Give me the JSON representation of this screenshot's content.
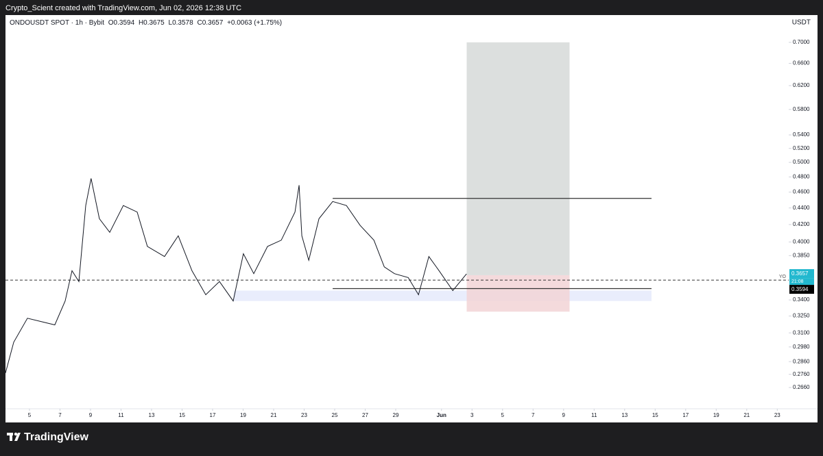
{
  "header": {
    "credit": "Crypto_Scient created with TradingView.com, Jun 02, 2026 12:38 UTC",
    "symbol": "ONDOUSDT SPOT · 1h · Bybit",
    "ohlc": [
      "O0.3594",
      "H0.3675",
      "L0.3578",
      "C0.3657",
      "+0.0063 (+1.75%)"
    ],
    "currency": "USDT"
  },
  "footer": {
    "brand": "TradingView"
  },
  "chart_data": {
    "type": "line",
    "log_scale": true,
    "series": [
      {
        "name": "ONDOUSDT",
        "color": "#131722",
        "x": [
          3.43,
          3.97,
          4.87,
          5.76,
          6.66,
          7.34,
          7.79,
          8.24,
          8.69,
          9.04,
          9.58,
          10.26,
          11.15,
          12.06,
          12.73,
          13.85,
          14.75,
          15.65,
          16.55,
          17.45,
          18.35,
          19.02,
          19.7,
          20.6,
          21.5,
          22.4,
          22.67,
          22.85,
          23.3,
          23.97,
          24.87,
          25.77,
          26.67,
          27.57,
          28.25,
          28.92,
          29.82,
          30.49,
          31.17,
          31.84,
          32.74,
          33.64
        ],
        "values": [
          0.277,
          0.302,
          0.323,
          0.32,
          0.317,
          0.339,
          0.369,
          0.358,
          0.443,
          0.478,
          0.427,
          0.411,
          0.443,
          0.435,
          0.395,
          0.384,
          0.407,
          0.369,
          0.345,
          0.358,
          0.339,
          0.387,
          0.366,
          0.395,
          0.402,
          0.435,
          0.469,
          0.407,
          0.38,
          0.427,
          0.448,
          0.443,
          0.419,
          0.402,
          0.373,
          0.366,
          0.362,
          0.345,
          0.384,
          0.369,
          0.349,
          0.3657
        ]
      }
    ],
    "xlim": [
      3.43,
      54.75
    ],
    "xticks": [
      5,
      7,
      9,
      11,
      13,
      15,
      17,
      19,
      21,
      23,
      25,
      27,
      29,
      {
        "value": 32,
        "label": "Jun"
      },
      {
        "value": 34,
        "label": "3"
      },
      {
        "value": 36,
        "label": "5"
      },
      {
        "value": 38,
        "label": "7"
      },
      {
        "value": 40,
        "label": "9"
      },
      {
        "value": 42,
        "label": "11"
      },
      {
        "value": 44,
        "label": "13"
      },
      {
        "value": 46,
        "label": "15"
      },
      {
        "value": 48,
        "label": "17"
      },
      {
        "value": 50,
        "label": "19"
      },
      {
        "value": 52,
        "label": "21"
      },
      {
        "value": 54,
        "label": "23"
      }
    ],
    "ylim": [
      0.2506,
      0.723
    ],
    "yticks": [
      {
        "value": 0.266,
        "label": "0.2660"
      },
      {
        "value": 0.276,
        "label": "0.2760"
      },
      {
        "value": 0.286,
        "label": "0.2860"
      },
      {
        "value": 0.298,
        "label": "0.2980"
      },
      {
        "value": 0.31,
        "label": "0.3100"
      },
      {
        "value": 0.325,
        "label": "0.3250"
      },
      {
        "value": 0.34,
        "label": "0.3400"
      },
      {
        "value": 0.385,
        "label": "0.3850"
      },
      {
        "value": 0.4,
        "label": "0.4000"
      },
      {
        "value": 0.42,
        "label": "0.4200"
      },
      {
        "value": 0.44,
        "label": "0.4400"
      },
      {
        "value": 0.46,
        "label": "0.4600"
      },
      {
        "value": 0.48,
        "label": "0.4800"
      },
      {
        "value": 0.5,
        "label": "0.5000"
      },
      {
        "value": 0.52,
        "label": "0.5200"
      },
      {
        "value": 0.54,
        "label": "0.5400"
      },
      {
        "value": 0.58,
        "label": "0.5800"
      },
      {
        "value": 0.62,
        "label": "0.6200"
      },
      {
        "value": 0.66,
        "label": "0.6600"
      },
      {
        "value": 0.7,
        "label": "0.7000"
      }
    ],
    "hlines": [
      {
        "value": 0.452,
        "x": [
          24.87,
          45.76
        ],
        "color": "#333333"
      },
      {
        "value": 0.351,
        "x": [
          24.87,
          45.76
        ],
        "color": "#333333"
      }
    ],
    "zone": {
      "low": 0.339,
      "high": 0.349,
      "x": [
        18.37,
        45.76
      ],
      "color": "#e3e9fb"
    },
    "position": {
      "entry": 0.3644,
      "target": 0.7,
      "stop": 0.329,
      "x": [
        33.65,
        40.39
      ],
      "profit_color": "#d6d9d8",
      "loss_color": "#f2d4d6"
    },
    "current": {
      "value": 0.3594,
      "label": "YO"
    },
    "price_labels": [
      {
        "value": 0.3657,
        "label": "0.3657",
        "color": "#22b8cf"
      },
      {
        "value": 0.3594,
        "label": "0.3594",
        "color": "#000000"
      }
    ],
    "countdown": "21:08"
  }
}
